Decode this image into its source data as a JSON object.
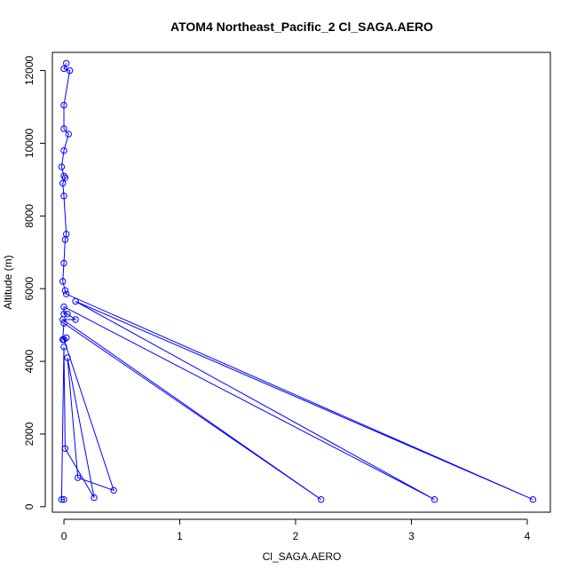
{
  "chart_data": {
    "type": "line",
    "title": "ATOM4 Northeast_Pacific_2 Cl_SAGA.AERO",
    "xlabel": "Cl_SAGA.AERO",
    "ylabel": "Altitude (m)",
    "xlim": [
      -0.1,
      4.2
    ],
    "ylim": [
      -150,
      12500
    ],
    "x_ticks": [
      0,
      1,
      2,
      3,
      4
    ],
    "x_tick_labels": [
      "0",
      "1",
      "2",
      "3",
      "4"
    ],
    "y_ticks": [
      0,
      2000,
      4000,
      6000,
      8000,
      10000,
      12000
    ],
    "y_tick_labels": [
      "0",
      "2000",
      "4000",
      "6000",
      "8000",
      "10000",
      "12000"
    ],
    "grid": false,
    "legend": "none",
    "color": "#0000ff",
    "series": [
      {
        "marker": "open-circle",
        "points": [
          [
            0.02,
            12200
          ],
          [
            0.0,
            12050
          ],
          [
            0.05,
            12000
          ],
          [
            0.0,
            11050
          ],
          [
            0.0,
            10400
          ],
          [
            0.04,
            10250
          ],
          [
            0.0,
            9800
          ],
          [
            -0.02,
            9350
          ],
          [
            0.0,
            9100
          ],
          [
            0.01,
            9050
          ],
          [
            -0.01,
            8900
          ],
          [
            0.0,
            8550
          ],
          [
            0.02,
            7500
          ],
          [
            0.01,
            7350
          ],
          [
            0.0,
            6700
          ],
          [
            -0.01,
            6200
          ],
          [
            0.01,
            5950
          ],
          [
            0.02,
            5850
          ],
          [
            4.05,
            200
          ],
          [
            0.1,
            5650
          ],
          [
            3.2,
            200
          ],
          [
            0.0,
            5500
          ],
          [
            0.0,
            5300
          ],
          [
            0.03,
            5300
          ],
          [
            0.1,
            5150
          ],
          [
            -0.01,
            5150
          ],
          [
            2.22,
            200
          ],
          [
            0.0,
            5050
          ],
          [
            -0.01,
            4600
          ],
          [
            0.02,
            4650
          ],
          [
            0.0,
            4600
          ],
          [
            0.43,
            450
          ],
          [
            0.12,
            800
          ],
          [
            0.03,
            4100
          ],
          [
            0.26,
            250
          ],
          [
            0.01,
            1600
          ],
          [
            0.0,
            4400
          ],
          [
            -0.02,
            200
          ],
          [
            0.0,
            200
          ]
        ]
      }
    ]
  }
}
